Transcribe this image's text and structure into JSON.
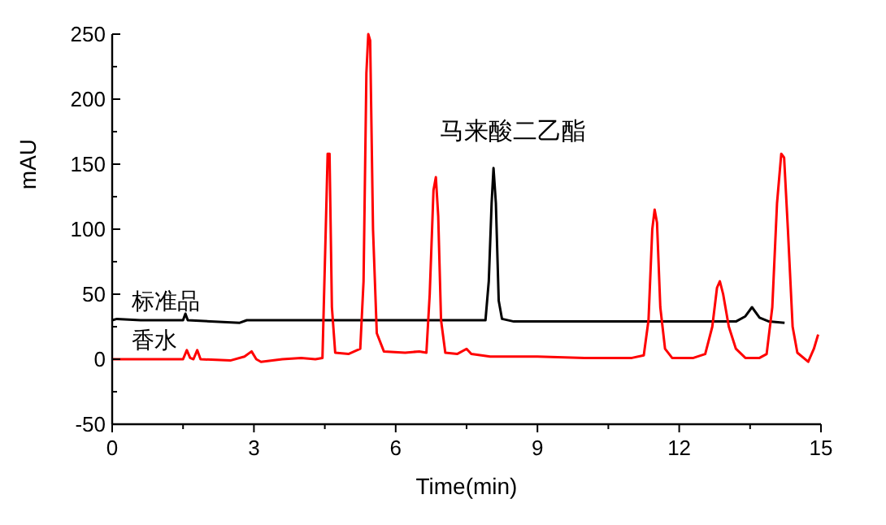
{
  "chart_data": {
    "type": "line",
    "xlabel": "Time(min)",
    "ylabel": "mAU",
    "xlim": [
      0,
      15
    ],
    "ylim": [
      -50,
      250
    ],
    "xticks": [
      0,
      {
        "value": 1.5,
        "label": null
      },
      3,
      {
        "value": 4.5,
        "label": null
      },
      6,
      {
        "value": 7.5,
        "label": null
      },
      9,
      {
        "value": 10.5,
        "label": null
      },
      12,
      {
        "value": 13.5,
        "label": null
      },
      15
    ],
    "yticks": [
      -50,
      {
        "value": -25,
        "label": null
      },
      0,
      {
        "value": 25,
        "label": null
      },
      50,
      {
        "value": 75,
        "label": null
      },
      100,
      {
        "value": 125,
        "label": null
      },
      150,
      {
        "value": 175,
        "label": null
      },
      200,
      {
        "value": 225,
        "label": null
      },
      250
    ],
    "grid": false,
    "line_style": "solid",
    "marker": "none",
    "annotations": [
      {
        "text": "马来酸二乙酯",
        "x": 8.07,
        "y": 147
      }
    ],
    "series": [
      {
        "name": "标准品",
        "color": "#000000",
        "x": [
          0,
          0.1,
          0.6,
          1.5,
          1.55,
          1.6,
          2.7,
          2.85,
          3.0,
          7.9,
          7.97,
          8.03,
          8.07,
          8.12,
          8.18,
          8.25,
          8.5,
          12.6,
          13.2,
          13.4,
          13.54,
          13.7,
          13.9,
          14.23
        ],
        "values": [
          30,
          31,
          30,
          30,
          35,
          30,
          28,
          30,
          30,
          30,
          60,
          120,
          147,
          120,
          45,
          31,
          29,
          29,
          29,
          33,
          40,
          32,
          29,
          28
        ]
      },
      {
        "name": "香水",
        "color": "#ff0000",
        "x": [
          0,
          1.5,
          1.58,
          1.65,
          1.72,
          1.8,
          1.87,
          2.5,
          2.8,
          2.95,
          3.05,
          3.15,
          3.6,
          4.0,
          4.3,
          4.45,
          4.52,
          4.56,
          4.6,
          4.65,
          4.72,
          5.0,
          5.25,
          5.32,
          5.38,
          5.42,
          5.46,
          5.52,
          5.6,
          5.75,
          6.2,
          6.5,
          6.65,
          6.72,
          6.8,
          6.85,
          6.9,
          6.96,
          7.05,
          7.3,
          7.5,
          7.6,
          8.0,
          9.0,
          10.0,
          11.0,
          11.25,
          11.35,
          11.43,
          11.48,
          11.53,
          11.6,
          11.7,
          11.85,
          12.3,
          12.55,
          12.7,
          12.8,
          12.86,
          12.93,
          13.05,
          13.2,
          13.4,
          13.7,
          13.85,
          13.97,
          14.07,
          14.16,
          14.22,
          14.3,
          14.4,
          14.5,
          14.73,
          14.85,
          14.94
        ],
        "values": [
          0,
          0,
          7,
          1,
          0,
          7,
          0,
          -1,
          2,
          6,
          0,
          -2,
          0,
          1,
          0,
          1,
          100,
          158,
          158,
          40,
          5,
          4,
          8,
          60,
          220,
          250,
          245,
          100,
          20,
          6,
          5,
          6,
          5,
          50,
          130,
          140,
          110,
          30,
          5,
          4,
          8,
          4,
          2,
          2,
          1,
          1,
          3,
          30,
          100,
          115,
          105,
          40,
          8,
          1,
          1,
          4,
          25,
          55,
          60,
          50,
          25,
          8,
          1,
          1,
          4,
          40,
          120,
          158,
          155,
          100,
          25,
          5,
          -2,
          8,
          19
        ]
      }
    ]
  }
}
